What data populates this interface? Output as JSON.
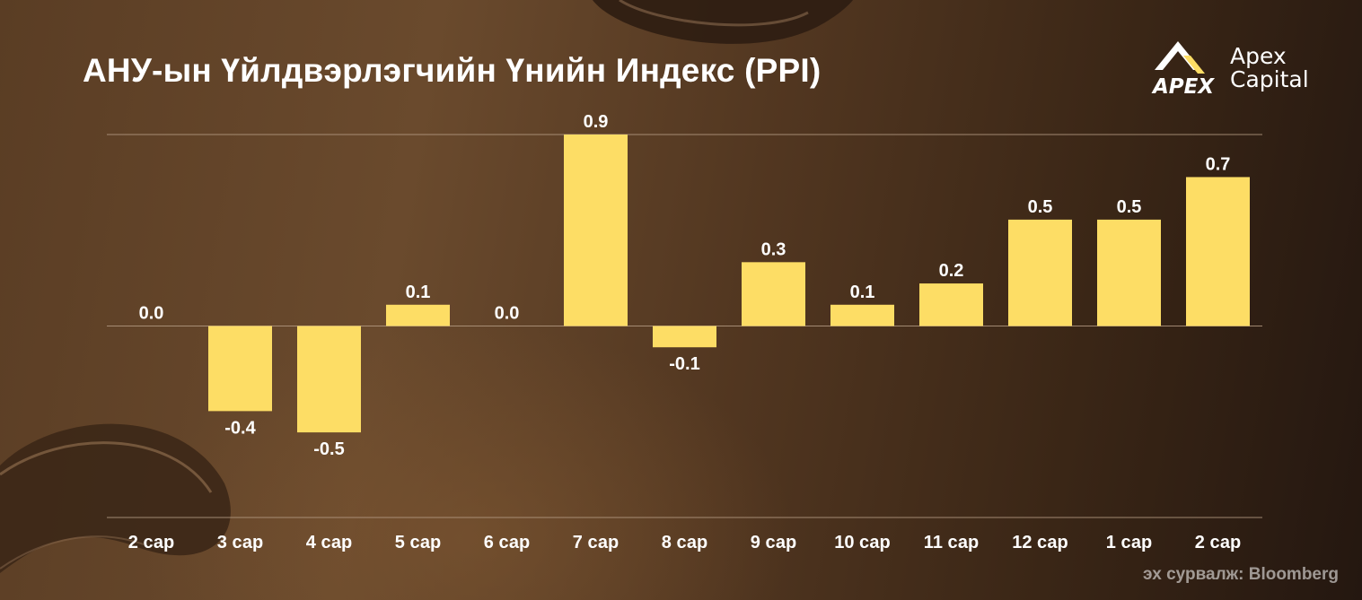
{
  "title": "АНУ-ын Үйлдвэрлэгчийн Үнийн Индекс (PPI)",
  "source": "эх сурвалж: Bloomberg",
  "logo": {
    "mark_text": "APEX",
    "name_line1": "Apex",
    "name_line2": "Capital"
  },
  "colors": {
    "bar": "#fddd65",
    "text": "#ffffff",
    "gridline": "#b39a82"
  },
  "chart_data": {
    "type": "bar",
    "categories": [
      "2 сар",
      "3 сар",
      "4 сар",
      "5 сар",
      "6 сар",
      "7 сар",
      "8 сар",
      "9 сар",
      "10 сар",
      "11 сар",
      "12 сар",
      "1 сар",
      "2 сар"
    ],
    "values": [
      0.0,
      -0.4,
      -0.5,
      0.1,
      0.0,
      0.9,
      -0.1,
      0.3,
      0.1,
      0.2,
      0.5,
      0.5,
      0.7
    ],
    "labels": [
      "0.0",
      "-0.4",
      "-0.5",
      "0.1",
      "0.0",
      "0.9",
      "-0.1",
      "0.3",
      "0.1",
      "0.2",
      "0.5",
      "0.5",
      "0.7"
    ],
    "title": "АНУ-ын Үйлдвэрлэгчийн Үнийн Индекс (PPI)",
    "xlabel": "",
    "ylabel": "",
    "ylim": [
      -0.9,
      0.9
    ],
    "grid": true,
    "legend": "none"
  }
}
